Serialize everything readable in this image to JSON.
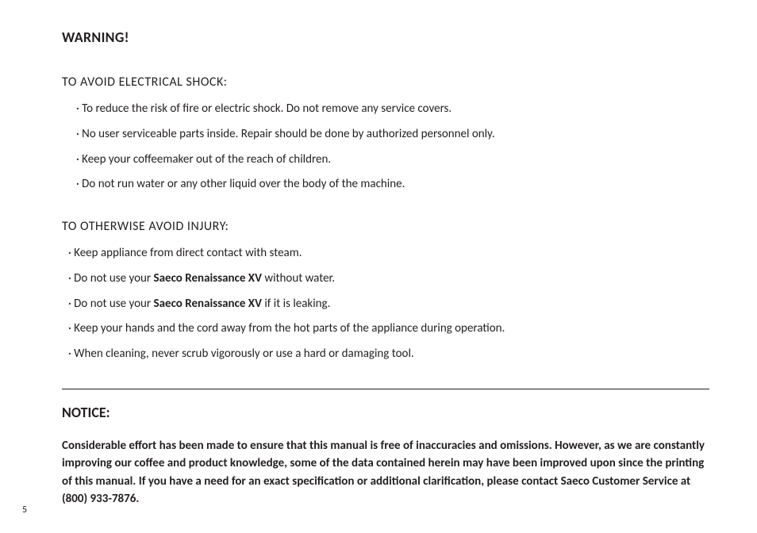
{
  "colors": {
    "text": "#231f20",
    "background": "#ffffff",
    "rule": "#231f20"
  },
  "typography": {
    "title_fontsize_pt": 18,
    "heading_fontsize_pt": 16,
    "body_fontsize_pt": 15,
    "pagenum_fontsize_pt": 12,
    "bold_weight": 700,
    "regular_weight": 400,
    "font_family": "Gill Sans"
  },
  "warning": {
    "title": "WARNING!",
    "section1": {
      "heading": "TO AVOID ELECTRICAL SHOCK:",
      "bullets": [
        "· To reduce the risk of fire or electric shock.  Do not remove any service covers.",
        "· No user serviceable parts inside.  Repair should be done by authorized personnel only.",
        "· Keep your coffeemaker out of the reach of children.",
        "· Do not run water or any other liquid over the body of the machine."
      ]
    },
    "section2": {
      "heading": "TO OTHERWISE AVOID INJURY:",
      "bullets": [
        {
          "pre": "· Keep appliance from direct contact with steam."
        },
        {
          "pre": "· Do not use your ",
          "bold": "Saeco Renaissance XV",
          "post": " without water."
        },
        {
          "pre": "· Do not use your ",
          "bold": "Saeco Renaissance XV",
          "post": " if it is leaking."
        },
        {
          "pre": "· Keep your hands and the cord away from the hot parts of the appliance during operation."
        },
        {
          "pre": "· When cleaning, never scrub vigorously or use a hard or damaging tool."
        }
      ]
    }
  },
  "notice": {
    "title": "NOTICE:",
    "body": "Considerable effort has been made to ensure that this manual is free of inaccuracies and omissions. However, as we are constantly improving our coffee and product knowledge, some of the data contained herein may have been improved upon since the printing of this manual.  If you have a need for an exact specification or additional clarification, please contact Saeco Customer Service at (800) 933-7876."
  },
  "page_number": "5"
}
